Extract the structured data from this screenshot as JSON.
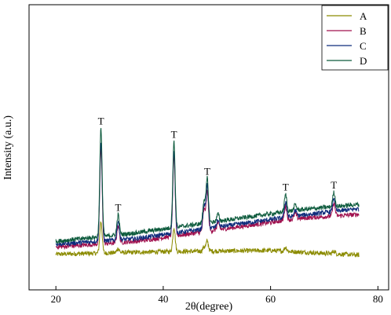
{
  "chart_data": {
    "type": "line",
    "title": "",
    "xlabel": "2θ(degree)",
    "ylabel": "Intensity (a.u.)",
    "xlim": [
      15,
      82
    ],
    "ylim": [
      0,
      100
    ],
    "xticks": [
      "20",
      "40",
      "60",
      "80"
    ],
    "xtick_values": [
      20,
      40,
      60,
      80
    ],
    "y_tick_labels": false,
    "legend_position": "top-right",
    "stack_offset": 17,
    "peak_label": "T",
    "peak_marks": [
      {
        "x": 28.4,
        "label": "T"
      },
      {
        "x": 31.6,
        "label": "T"
      },
      {
        "x": 42.0,
        "label": "T"
      },
      {
        "x": 48.2,
        "label": "T"
      },
      {
        "x": 62.8,
        "label": "T"
      },
      {
        "x": 71.8,
        "label": "T"
      }
    ],
    "series": [
      {
        "name": "A",
        "color": "#8B8B00",
        "offset": 0,
        "baseline": [
          [
            20,
            12.5
          ],
          [
            40,
            13.4
          ],
          [
            60,
            13.8
          ],
          [
            76.5,
            12.2
          ]
        ],
        "peaks": [
          [
            28.4,
            11.0
          ],
          [
            31.6,
            1.5
          ],
          [
            42.0,
            8.5
          ],
          [
            48.2,
            3.5
          ],
          [
            47.6,
            1.5
          ],
          [
            62.8,
            1.5
          ],
          [
            71.8,
            1.0
          ]
        ]
      },
      {
        "name": "B",
        "color": "#A0104E",
        "offset": 17,
        "baseline": [
          [
            20,
            15
          ],
          [
            35,
            17
          ],
          [
            50,
            21
          ],
          [
            65,
            25
          ],
          [
            76.5,
            26.5
          ]
        ],
        "peaks": [
          [
            28.4,
            33.5
          ],
          [
            31.6,
            6.0
          ],
          [
            42.0,
            27.5
          ],
          [
            48.2,
            14.0
          ],
          [
            47.6,
            7.5
          ],
          [
            50.2,
            2.5
          ],
          [
            62.8,
            5.0
          ],
          [
            64.6,
            2.0
          ],
          [
            71.8,
            4.5
          ]
        ]
      },
      {
        "name": "C",
        "color": "#0F2C7C",
        "offset": 34,
        "baseline": [
          [
            20,
            16
          ],
          [
            35,
            18
          ],
          [
            50,
            22
          ],
          [
            65,
            26
          ],
          [
            76.5,
            28.5
          ]
        ],
        "peaks": [
          [
            28.4,
            35.0
          ],
          [
            31.6,
            6.5
          ],
          [
            42.0,
            28.5
          ],
          [
            48.2,
            15.0
          ],
          [
            47.6,
            8.0
          ],
          [
            50.2,
            2.5
          ],
          [
            62.8,
            5.5
          ],
          [
            64.6,
            2.0
          ],
          [
            71.8,
            4.8
          ]
        ]
      },
      {
        "name": "D",
        "color": "#0C5A3C",
        "offset": 51,
        "baseline": [
          [
            20,
            17
          ],
          [
            35,
            20
          ],
          [
            50,
            24
          ],
          [
            65,
            28
          ],
          [
            76.5,
            30
          ]
        ],
        "peaks": [
          [
            28.4,
            38.0
          ],
          [
            31.6,
            7.0
          ],
          [
            42.0,
            30.0
          ],
          [
            48.2,
            15.5
          ],
          [
            47.6,
            8.0
          ],
          [
            50.2,
            2.5
          ],
          [
            62.8,
            6.0
          ],
          [
            64.6,
            2.0
          ],
          [
            71.8,
            5.0
          ]
        ]
      }
    ]
  }
}
